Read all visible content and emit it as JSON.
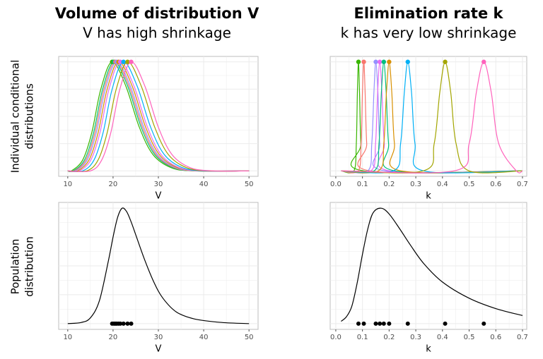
{
  "columns": [
    {
      "title": "Volume of distribution V",
      "subtitle": "V has high shrinkage"
    },
    {
      "title": "Elimination rate k",
      "subtitle": "k has very low shrinkage"
    }
  ],
  "row_labels": [
    [
      "Individual conditional",
      "distributions"
    ],
    [
      "Population",
      "distribution"
    ]
  ],
  "chart_data": [
    {
      "type": "density",
      "xlabel": "V",
      "xlim": [
        8,
        52
      ],
      "xticks": [
        10,
        20,
        30,
        40,
        50
      ],
      "xminor": [
        15,
        25,
        35,
        45
      ],
      "ylim": [
        -0.05,
        1.05
      ],
      "ygrid": [
        0,
        0.125,
        0.25,
        0.375,
        0.5,
        0.625,
        0.75,
        0.875,
        1
      ],
      "series": [
        {
          "color": "#39B600",
          "mode": 19.8,
          "x": [
            10,
            10.8,
            13.3,
            15.3,
            17.3,
            19.8,
            22.8,
            25.8,
            28.8,
            32.8,
            37.8,
            50
          ],
          "values": [
            0,
            0,
            0.1,
            0.35,
            0.75,
            1,
            0.78,
            0.4,
            0.15,
            0.03,
            0,
            0
          ]
        },
        {
          "color": "#00BF7D",
          "mode": 20.2,
          "x": [
            10,
            11.2,
            13.7,
            15.7,
            17.7,
            20.2,
            23.2,
            26.2,
            29.2,
            33.2,
            38.2,
            50
          ],
          "values": [
            0,
            0,
            0.1,
            0.35,
            0.75,
            1,
            0.78,
            0.4,
            0.15,
            0.03,
            0,
            0
          ]
        },
        {
          "color": "#F8766D",
          "mode": 20.5,
          "x": [
            10,
            11.5,
            14,
            16,
            18,
            20.5,
            23.5,
            26.5,
            29.5,
            33.5,
            38.5,
            50
          ],
          "values": [
            0,
            0,
            0.1,
            0.35,
            0.75,
            1,
            0.78,
            0.4,
            0.15,
            0.03,
            0,
            0
          ]
        },
        {
          "color": "#9590FF",
          "mode": 20.8,
          "x": [
            10,
            11.8,
            14.3,
            16.3,
            18.3,
            20.8,
            23.8,
            26.8,
            29.8,
            33.8,
            38.8,
            50
          ],
          "values": [
            0,
            0,
            0.1,
            0.35,
            0.75,
            1,
            0.78,
            0.4,
            0.15,
            0.03,
            0,
            0
          ]
        },
        {
          "color": "#D89000",
          "mode": 21.2,
          "x": [
            10,
            12.2,
            14.7,
            16.7,
            18.7,
            21.2,
            24.2,
            27.2,
            30.2,
            34.2,
            39.2,
            50
          ],
          "values": [
            0,
            0,
            0.1,
            0.35,
            0.75,
            1,
            0.78,
            0.4,
            0.15,
            0.03,
            0,
            0
          ]
        },
        {
          "color": "#E76BF3",
          "mode": 21.6,
          "x": [
            10,
            12.6,
            15.1,
            17.1,
            19.1,
            21.6,
            24.6,
            27.6,
            30.6,
            34.6,
            39.6,
            50
          ],
          "values": [
            0,
            0,
            0.1,
            0.35,
            0.75,
            1,
            0.78,
            0.4,
            0.15,
            0.03,
            0,
            0
          ]
        },
        {
          "color": "#00B0F6",
          "mode": 22.3,
          "x": [
            10,
            13.3,
            15.8,
            17.8,
            19.8,
            22.3,
            25.3,
            28.3,
            31.3,
            35.3,
            40.3,
            50
          ],
          "values": [
            0,
            0,
            0.1,
            0.35,
            0.75,
            1,
            0.78,
            0.4,
            0.15,
            0.03,
            0,
            0
          ]
        },
        {
          "color": "#A3A500",
          "mode": 23.2,
          "x": [
            10,
            14.2,
            16.7,
            18.7,
            20.7,
            23.2,
            26.2,
            29.2,
            32.2,
            36.2,
            41.2,
            50
          ],
          "values": [
            0,
            0,
            0.1,
            0.35,
            0.75,
            1,
            0.78,
            0.4,
            0.15,
            0.03,
            0,
            0
          ]
        },
        {
          "color": "#FF62BC",
          "mode": 24,
          "x": [
            10,
            15,
            17.5,
            19.5,
            21.5,
            24,
            27,
            30,
            33,
            37,
            42,
            50
          ],
          "values": [
            0,
            0,
            0.1,
            0.35,
            0.75,
            1,
            0.78,
            0.4,
            0.15,
            0.03,
            0,
            0
          ]
        }
      ]
    },
    {
      "type": "density",
      "xlabel": "k",
      "xlim": [
        -0.021,
        0.716
      ],
      "xticks": [
        {
          "value": 0,
          "label": "0.0"
        },
        0.1,
        0.2,
        0.3,
        0.4,
        0.5,
        0.6,
        0.7
      ],
      "xminor": [
        0.05,
        0.15,
        0.25,
        0.35,
        0.45,
        0.55,
        0.65
      ],
      "ylim": [
        -0.05,
        1.05
      ],
      "ygrid": [
        0,
        0.125,
        0.25,
        0.375,
        0.5,
        0.625,
        0.75,
        0.875,
        1
      ],
      "series": [
        {
          "color": "#39B600",
          "mode": 0.085,
          "x": [
            0.02,
            0.068,
            0.077,
            0.081,
            0.085,
            0.089,
            0.094,
            0.104,
            0.7
          ],
          "values": [
            0,
            0,
            0.25,
            0.72,
            1,
            0.72,
            0.25,
            0,
            0
          ]
        },
        {
          "color": "#F8766D",
          "mode": 0.105,
          "x": [
            0.02,
            0.084,
            0.095,
            0.1,
            0.105,
            0.11,
            0.116,
            0.128,
            0.7
          ],
          "values": [
            0,
            0,
            0.25,
            0.72,
            1,
            0.72,
            0.25,
            0,
            0
          ]
        },
        {
          "color": "#9590FF",
          "mode": 0.15,
          "x": [
            0.02,
            0.12,
            0.135,
            0.143,
            0.15,
            0.158,
            0.165,
            0.183,
            0.7
          ],
          "values": [
            0,
            0,
            0.25,
            0.72,
            1,
            0.72,
            0.25,
            0,
            0
          ]
        },
        {
          "color": "#E76BF3",
          "mode": 0.165,
          "x": [
            0.02,
            0.132,
            0.149,
            0.157,
            0.165,
            0.173,
            0.182,
            0.201,
            0.7
          ],
          "values": [
            0,
            0,
            0.25,
            0.72,
            1,
            0.72,
            0.25,
            0,
            0
          ]
        },
        {
          "color": "#00BF7D",
          "mode": 0.18,
          "x": [
            0.02,
            0.144,
            0.162,
            0.171,
            0.18,
            0.189,
            0.198,
            0.22,
            0.7
          ],
          "values": [
            0,
            0,
            0.25,
            0.72,
            1,
            0.72,
            0.25,
            0,
            0
          ]
        },
        {
          "color": "#D89000",
          "mode": 0.2,
          "x": [
            0.02,
            0.16,
            0.18,
            0.19,
            0.2,
            0.21,
            0.22,
            0.244,
            0.7
          ],
          "values": [
            0,
            0,
            0.25,
            0.72,
            1,
            0.72,
            0.25,
            0,
            0
          ]
        },
        {
          "color": "#00B0F6",
          "mode": 0.27,
          "x": [
            0.02,
            0.216,
            0.243,
            0.257,
            0.27,
            0.284,
            0.297,
            0.329,
            0.7
          ],
          "values": [
            0,
            0,
            0.25,
            0.72,
            1,
            0.72,
            0.25,
            0,
            0
          ]
        },
        {
          "color": "#A3A500",
          "mode": 0.41,
          "x": [
            0.02,
            0.328,
            0.369,
            0.39,
            0.41,
            0.431,
            0.451,
            0.5,
            0.7
          ],
          "values": [
            0,
            0,
            0.25,
            0.72,
            1,
            0.72,
            0.25,
            0,
            0
          ]
        },
        {
          "color": "#FF62BC",
          "mode": 0.555,
          "x": [
            0.02,
            0.444,
            0.5,
            0.527,
            0.555,
            0.583,
            0.611,
            0.677,
            0.7
          ],
          "values": [
            0,
            0,
            0.25,
            0.72,
            1,
            0.72,
            0.25,
            0,
            0
          ]
        }
      ]
    },
    {
      "type": "density",
      "xlabel": "V",
      "xlim": [
        8,
        52
      ],
      "xticks": [
        10,
        20,
        30,
        40,
        50
      ],
      "xminor": [
        15,
        25,
        35,
        45
      ],
      "ylim": [
        -0.05,
        1.05
      ],
      "ygrid": [
        0,
        0.125,
        0.25,
        0.375,
        0.5,
        0.625,
        0.75,
        0.875,
        1
      ],
      "series": [
        {
          "color": "#000000",
          "x": [
            10,
            13,
            15,
            17,
            19,
            20,
            21,
            22,
            23,
            24,
            25,
            27,
            29,
            31,
            34,
            38,
            44,
            50
          ],
          "values": [
            0,
            0.01,
            0.05,
            0.2,
            0.55,
            0.75,
            0.92,
            1,
            0.97,
            0.88,
            0.77,
            0.55,
            0.36,
            0.22,
            0.1,
            0.04,
            0.01,
            0
          ]
        }
      ],
      "points": [
        19.8,
        20.2,
        20.5,
        20.8,
        21.2,
        21.6,
        22.3,
        23.2,
        24
      ],
      "point_color": "#000000"
    },
    {
      "type": "density",
      "xlabel": "k",
      "xlim": [
        -0.021,
        0.716
      ],
      "xticks": [
        {
          "value": 0,
          "label": "0.0"
        },
        0.1,
        0.2,
        0.3,
        0.4,
        0.5,
        0.6,
        0.7
      ],
      "xminor": [
        0.05,
        0.15,
        0.25,
        0.35,
        0.45,
        0.55,
        0.65
      ],
      "ylim": [
        -0.05,
        1.05
      ],
      "ygrid": [
        0,
        0.125,
        0.25,
        0.375,
        0.5,
        0.625,
        0.75,
        0.875,
        1
      ],
      "series": [
        {
          "color": "#000000",
          "x": [
            0.02,
            0.04,
            0.06,
            0.08,
            0.1,
            0.12,
            0.14,
            0.17,
            0.2,
            0.24,
            0.28,
            0.33,
            0.4,
            0.5,
            0.6,
            0.7
          ],
          "values": [
            0.02,
            0.06,
            0.15,
            0.35,
            0.6,
            0.82,
            0.96,
            1,
            0.95,
            0.82,
            0.68,
            0.52,
            0.36,
            0.22,
            0.13,
            0.07
          ]
        }
      ],
      "points": [
        0.085,
        0.105,
        0.15,
        0.165,
        0.18,
        0.2,
        0.27,
        0.41,
        0.555
      ],
      "point_color": "#000000"
    }
  ]
}
